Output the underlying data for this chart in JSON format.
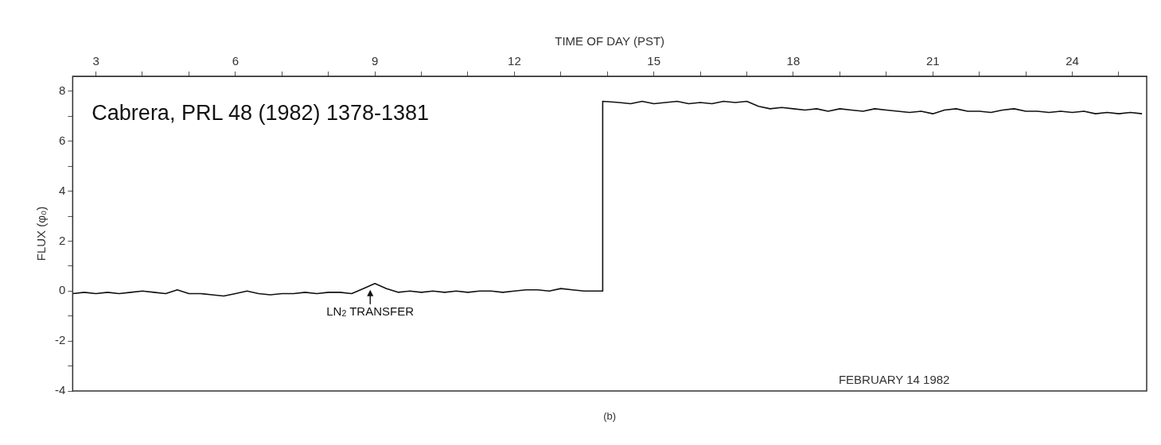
{
  "chart_data": {
    "type": "line",
    "xlabel": "TIME OF DAY (PST)",
    "ylabel": "FLUX (φ₀)",
    "x": [
      2.5,
      2.75,
      3.0,
      3.25,
      3.5,
      3.75,
      4.0,
      4.25,
      4.5,
      4.75,
      5.0,
      5.25,
      5.5,
      5.75,
      6.0,
      6.25,
      6.5,
      6.75,
      7.0,
      7.25,
      7.5,
      7.75,
      8.0,
      8.25,
      8.5,
      8.75,
      9.0,
      9.25,
      9.5,
      9.75,
      10.0,
      10.25,
      10.5,
      10.75,
      11.0,
      11.25,
      11.5,
      11.75,
      12.0,
      12.25,
      12.5,
      12.75,
      13.0,
      13.25,
      13.5,
      13.75,
      13.9,
      13.9,
      14.25,
      14.5,
      14.75,
      15.0,
      15.25,
      15.5,
      15.75,
      16.0,
      16.25,
      16.5,
      16.75,
      17.0,
      17.25,
      17.5,
      17.75,
      18.0,
      18.25,
      18.5,
      18.75,
      19.0,
      19.25,
      19.5,
      19.75,
      20.0,
      20.25,
      20.5,
      20.75,
      21.0,
      21.25,
      21.5,
      21.75,
      22.0,
      22.25,
      22.5,
      22.75,
      23.0,
      23.25,
      23.5,
      23.75,
      24.0,
      24.25,
      24.5,
      24.75,
      25.0,
      25.25,
      25.5
    ],
    "series": [
      {
        "color": "#111111",
        "values": [
          -0.1,
          -0.05,
          -0.1,
          -0.05,
          -0.1,
          -0.05,
          0.0,
          -0.05,
          -0.1,
          0.05,
          -0.1,
          -0.1,
          -0.15,
          -0.2,
          -0.1,
          0.0,
          -0.1,
          -0.15,
          -0.1,
          -0.1,
          -0.05,
          -0.1,
          -0.05,
          -0.05,
          -0.1,
          0.1,
          0.3,
          0.1,
          -0.05,
          0.0,
          -0.05,
          0.0,
          -0.05,
          0.0,
          -0.05,
          0.0,
          0.0,
          -0.05,
          0.0,
          0.05,
          0.05,
          0.0,
          0.1,
          0.05,
          0.0,
          0.0,
          0.0,
          7.6,
          7.55,
          7.5,
          7.6,
          7.5,
          7.55,
          7.6,
          7.5,
          7.55,
          7.5,
          7.6,
          7.55,
          7.6,
          7.4,
          7.3,
          7.35,
          7.3,
          7.25,
          7.3,
          7.2,
          7.3,
          7.25,
          7.2,
          7.3,
          7.25,
          7.2,
          7.15,
          7.2,
          7.1,
          7.25,
          7.3,
          7.2,
          7.2,
          7.15,
          7.25,
          7.3,
          7.2,
          7.2,
          7.15,
          7.2,
          7.15,
          7.2,
          7.1,
          7.15,
          7.1,
          7.15,
          7.1
        ]
      }
    ],
    "xlim": [
      2.5,
      25.6
    ],
    "xticks": [
      3,
      {
        "value": 4,
        "label": null
      },
      {
        "value": 5,
        "label": null
      },
      6,
      {
        "value": 7,
        "label": null
      },
      {
        "value": 8,
        "label": null
      },
      9,
      {
        "value": 10,
        "label": null
      },
      {
        "value": 11,
        "label": null
      },
      12,
      {
        "value": 13,
        "label": null
      },
      {
        "value": 14,
        "label": null
      },
      15,
      {
        "value": 16,
        "label": null
      },
      {
        "value": 17,
        "label": null
      },
      18,
      {
        "value": 19,
        "label": null
      },
      {
        "value": 20,
        "label": null
      },
      21,
      {
        "value": 22,
        "label": null
      },
      {
        "value": 23,
        "label": null
      },
      24,
      {
        "value": 25,
        "label": null
      }
    ],
    "ylim": [
      -4,
      8.6
    ],
    "yticks": [
      -4,
      {
        "value": -3,
        "label": null
      },
      -2,
      {
        "value": -1,
        "label": null
      },
      0,
      {
        "value": 1,
        "label": null
      },
      2,
      {
        "value": 3,
        "label": null
      },
      4,
      {
        "value": 5,
        "label": null
      },
      6,
      {
        "value": 7,
        "label": null
      },
      8
    ],
    "annotations": [
      "Cabrera, PRL 48 (1982) 1378-1381",
      {
        "text": "LN$_{2}$ TRANSFER",
        "x": 8.9,
        "y": 0.3
      },
      "FEBRUARY 14 1982",
      "(b)"
    ],
    "grid": false,
    "legend": false,
    "marker": "none",
    "line_style": "solid"
  }
}
